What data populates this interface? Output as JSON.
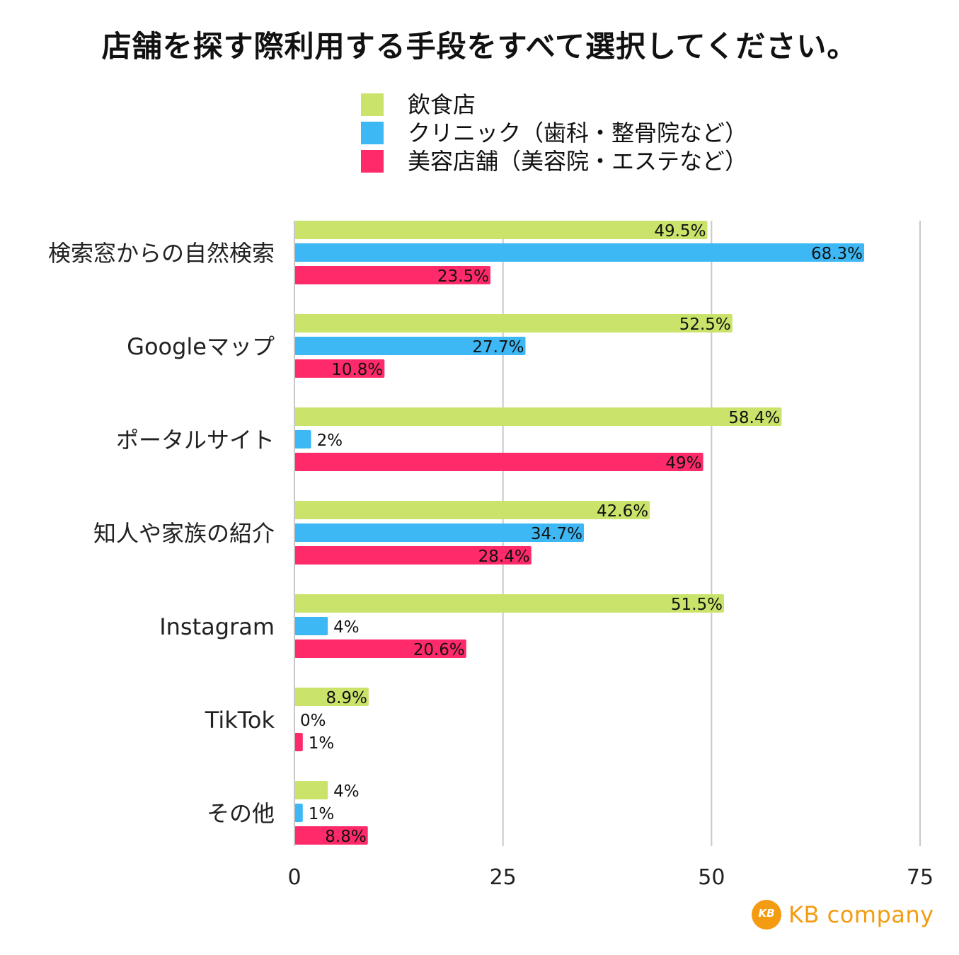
{
  "chart_data": {
    "type": "bar",
    "orientation": "horizontal",
    "title": "店舗を探す際利用する手段をすべて選択してください。",
    "categories": [
      "検索窓からの自然検索",
      "Googleマップ",
      "ポータルサイト",
      "知人や家族の紹介",
      "Instagram",
      "TikTok",
      "その他"
    ],
    "series": [
      {
        "name": "飲食店",
        "color": "#c9e36b",
        "values": [
          49.5,
          52.5,
          58.4,
          42.6,
          51.5,
          8.9,
          4
        ],
        "labels": [
          "49.5%",
          "52.5%",
          "58.4%",
          "42.6%",
          "51.5%",
          "8.9%",
          "4%"
        ]
      },
      {
        "name": "クリニック（歯科・整骨院など）",
        "color": "#3db8f5",
        "values": [
          68.3,
          27.7,
          2,
          34.7,
          4,
          0,
          1
        ],
        "labels": [
          "68.3%",
          "27.7%",
          "2%",
          "34.7%",
          "4%",
          "0%",
          "1%"
        ]
      },
      {
        "name": "美容店舗（美容院・エステなど）",
        "color": "#ff2a6a",
        "values": [
          23.5,
          10.8,
          49,
          28.4,
          20.6,
          1,
          8.8
        ],
        "labels": [
          "23.5%",
          "10.8%",
          "49%",
          "28.4%",
          "20.6%",
          "1%",
          "8.8%"
        ]
      }
    ],
    "xlim": [
      0,
      75
    ],
    "xticks": [
      0,
      25,
      50,
      75
    ],
    "xtick_labels": [
      "0",
      "25",
      "50",
      "75"
    ],
    "grid": true,
    "legend": "top-center"
  },
  "logo": {
    "mark": "KB",
    "text": "KB company",
    "color": "#f39c12"
  }
}
